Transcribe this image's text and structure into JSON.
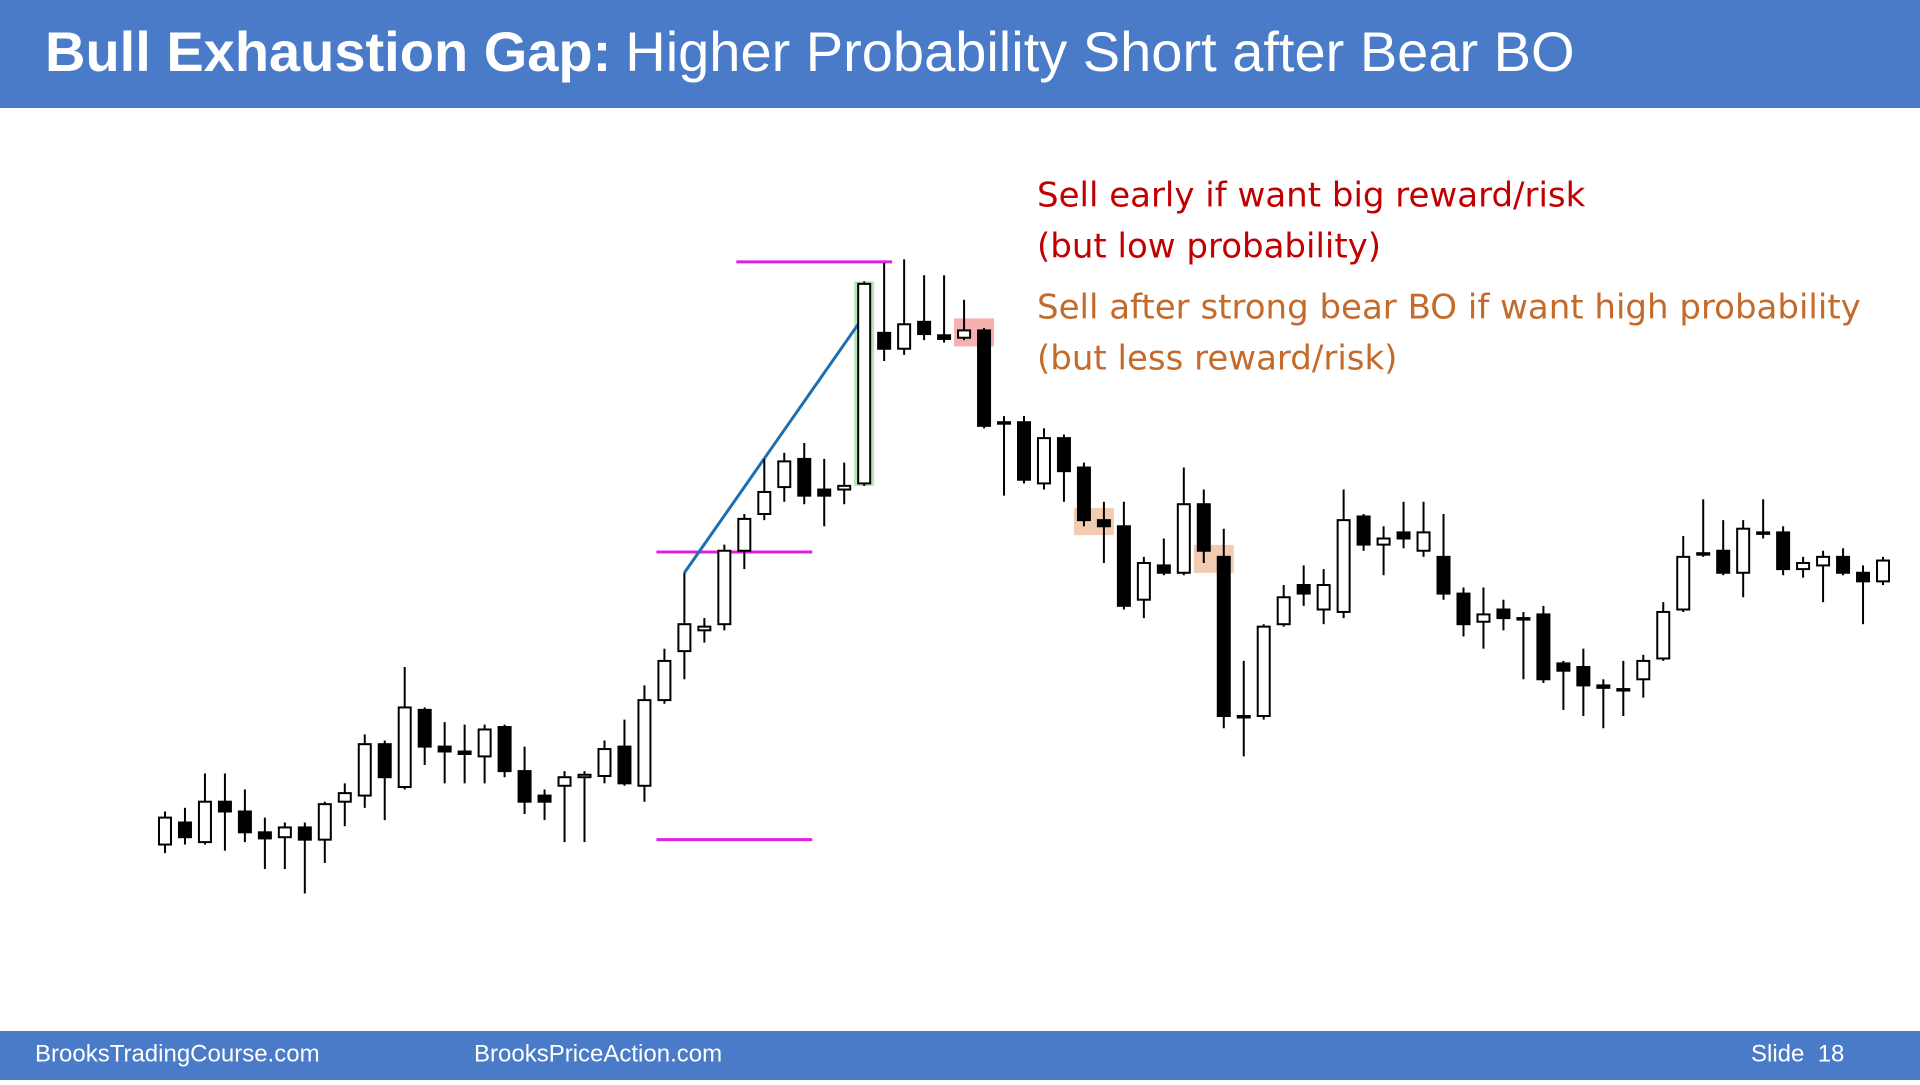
{
  "header": {
    "title": "Bull Exhaustion Gap:",
    "subtitle": "Higher Probability Short after Bear BO"
  },
  "footer": {
    "left": "BrooksTradingCourse.com",
    "middle": "BrooksPriceAction.com",
    "slide": "Slide  18"
  },
  "chart_data": {
    "type": "candlestick",
    "annotations": [
      {
        "color": "#C00000",
        "lines": [
          "Sell early if want big reward/risk",
          "(but low probability)"
        ]
      },
      {
        "color": "#C46A2A",
        "lines": [
          "Sell after strong bear BO if want high probability",
          "(but less reward/risk)"
        ]
      }
    ],
    "ylim": [
      0,
      620
    ],
    "open": [
      60,
      78,
      62,
      95,
      87,
      70,
      66,
      74,
      64,
      95,
      100,
      142,
      107,
      170,
      140,
      136,
      132,
      156,
      120,
      100,
      108,
      115,
      116,
      140,
      108,
      178,
      218,
      235,
      240,
      300,
      330,
      352,
      375,
      350,
      350,
      355,
      478,
      465,
      487,
      476,
      474,
      480,
      405,
      405,
      355,
      392,
      368,
      325,
      320,
      260,
      288,
      282,
      338,
      295,
      165,
      165,
      240,
      272,
      252,
      250,
      328,
      305,
      315,
      300,
      295,
      265,
      242,
      252,
      245,
      248,
      208,
      205,
      190,
      187,
      195,
      212,
      252,
      298,
      300,
      282,
      315,
      315,
      285,
      288,
      295,
      282,
      275
    ],
    "high": [
      87,
      90,
      118,
      118,
      105,
      82,
      78,
      78,
      95,
      110,
      150,
      145,
      205,
      172,
      160,
      158,
      158,
      158,
      140,
      105,
      120,
      120,
      145,
      162,
      190,
      220,
      282,
      245,
      305,
      330,
      375,
      380,
      388,
      375,
      372,
      520,
      535,
      538,
      525,
      525,
      505,
      482,
      410,
      410,
      400,
      395,
      372,
      340,
      340,
      295,
      310,
      368,
      350,
      318,
      210,
      240,
      272,
      288,
      285,
      350,
      330,
      320,
      340,
      340,
      330,
      270,
      270,
      260,
      250,
      255,
      210,
      220,
      195,
      210,
      215,
      258,
      312,
      342,
      325,
      325,
      342,
      320,
      295,
      300,
      302,
      288,
      295
    ],
    "low": [
      53,
      60,
      60,
      55,
      62,
      40,
      40,
      20,
      45,
      75,
      90,
      80,
      105,
      125,
      110,
      110,
      110,
      115,
      85,
      80,
      62,
      62,
      110,
      108,
      95,
      175,
      195,
      225,
      235,
      285,
      325,
      340,
      338,
      320,
      338,
      353,
      455,
      460,
      472,
      470,
      472,
      400,
      345,
      355,
      350,
      340,
      320,
      290,
      252,
      245,
      280,
      280,
      290,
      155,
      132,
      162,
      238,
      255,
      240,
      245,
      300,
      280,
      302,
      295,
      260,
      230,
      220,
      235,
      195,
      192,
      170,
      165,
      155,
      165,
      180,
      210,
      250,
      295,
      280,
      262,
      310,
      280,
      278,
      258,
      280,
      240,
      272
    ],
    "close": [
      82,
      66,
      95,
      87,
      70,
      65,
      74,
      64,
      93,
      102,
      142,
      115,
      172,
      140,
      136,
      134,
      154,
      120,
      95,
      95,
      115,
      117,
      138,
      110,
      178,
      210,
      240,
      238,
      300,
      326,
      348,
      373,
      345,
      345,
      353,
      518,
      465,
      485,
      477,
      473,
      480,
      402,
      405,
      358,
      392,
      365,
      325,
      320,
      255,
      290,
      282,
      338,
      300,
      165,
      165,
      238,
      262,
      265,
      272,
      325,
      305,
      310,
      310,
      315,
      265,
      240,
      248,
      245,
      245,
      195,
      202,
      190,
      188,
      187,
      210,
      250,
      295,
      298,
      282,
      318,
      315,
      285,
      290,
      295,
      282,
      275,
      292
    ],
    "levels": [
      536,
      299,
      64
    ],
    "trend_line": [
      282,
      492
    ]
  }
}
